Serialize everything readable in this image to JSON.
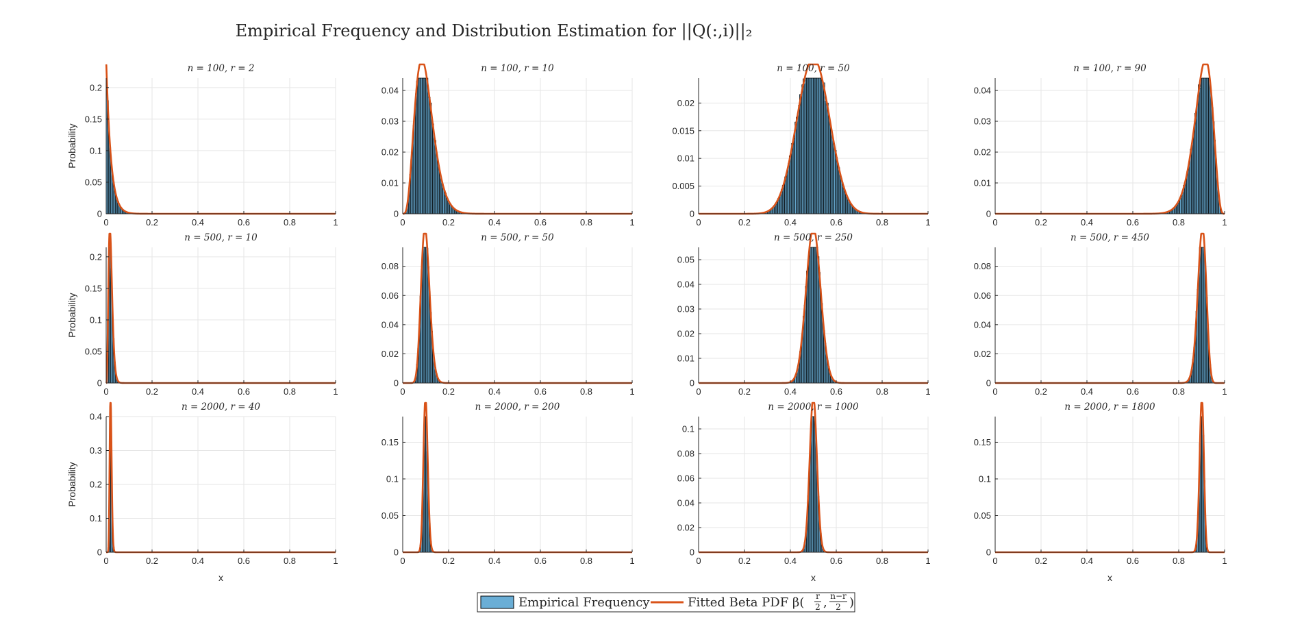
{
  "figure": {
    "title": "Empirical Frequency and Distribution Estimation for ||Q(:,i)||₂"
  },
  "legend": {
    "items": [
      "Empirical Frequency",
      "Fitted Beta PDF β(",
      ")"
    ],
    "frac1_num": "r",
    "frac1_den": "2",
    "frac2_num": "n−r",
    "frac2_den": "2",
    "comma": ","
  },
  "colors": {
    "bar_fill": "#6aaed6",
    "bar_edge": "#000000",
    "curve": "#d95319",
    "grid": "#e6e6e6",
    "axis": "#262626"
  },
  "chart_data": [
    {
      "type": "bar+line",
      "title": "n = 100, r = 2",
      "n": 100,
      "r": 2,
      "xlim": [
        0,
        1
      ],
      "ylim": [
        0,
        0.215
      ],
      "yticks": [
        0,
        0.05,
        0.1,
        0.15,
        0.2
      ],
      "ytick_labels": [
        "0",
        "0.05",
        "0.1",
        "0.15",
        "0.2"
      ],
      "xticks": [
        0,
        0.2,
        0.4,
        0.6,
        0.8,
        1
      ],
      "xtick_labels": [
        "0",
        "0.2",
        "0.4",
        "0.6",
        "0.8",
        "1"
      ],
      "ylabel": "Probability",
      "xlabel": "",
      "bin_width": 0.005,
      "series": [
        {
          "name": "Empirical Frequency",
          "kind": "bar"
        },
        {
          "name": "Fitted Beta PDF",
          "kind": "line",
          "beta_a": 1,
          "beta_b": 49
        }
      ]
    },
    {
      "type": "bar+line",
      "title": "n = 100, r = 10",
      "n": 100,
      "r": 10,
      "xlim": [
        0,
        1
      ],
      "ylim": [
        0,
        0.044
      ],
      "yticks": [
        0,
        0.01,
        0.02,
        0.03,
        0.04
      ],
      "ytick_labels": [
        "0",
        "0.01",
        "0.02",
        "0.03",
        "0.04"
      ],
      "xticks": [
        0,
        0.2,
        0.4,
        0.6,
        0.8,
        1
      ],
      "xtick_labels": [
        "0",
        "0.2",
        "0.4",
        "0.6",
        "0.8",
        "1"
      ],
      "ylabel": "",
      "xlabel": "",
      "bin_width": 0.005,
      "series": [
        {
          "name": "Empirical Frequency",
          "kind": "bar"
        },
        {
          "name": "Fitted Beta PDF",
          "kind": "line",
          "beta_a": 5,
          "beta_b": 45
        }
      ]
    },
    {
      "type": "bar+line",
      "title": "n = 100, r = 50",
      "n": 100,
      "r": 50,
      "xlim": [
        0,
        1
      ],
      "ylim": [
        0,
        0.0245
      ],
      "yticks": [
        0,
        0.005,
        0.01,
        0.015,
        0.02
      ],
      "ytick_labels": [
        "0",
        "0.005",
        "0.01",
        "0.015",
        "0.02"
      ],
      "xticks": [
        0,
        0.2,
        0.4,
        0.6,
        0.8,
        1
      ],
      "xtick_labels": [
        "0",
        "0.2",
        "0.4",
        "0.6",
        "0.8",
        "1"
      ],
      "ylabel": "",
      "xlabel": "",
      "bin_width": 0.005,
      "series": [
        {
          "name": "Empirical Frequency",
          "kind": "bar"
        },
        {
          "name": "Fitted Beta PDF",
          "kind": "line",
          "beta_a": 25,
          "beta_b": 25
        }
      ]
    },
    {
      "type": "bar+line",
      "title": "n = 100, r = 90",
      "n": 100,
      "r": 90,
      "xlim": [
        0,
        1
      ],
      "ylim": [
        0,
        0.044
      ],
      "yticks": [
        0,
        0.01,
        0.02,
        0.03,
        0.04
      ],
      "ytick_labels": [
        "0",
        "0.01",
        "0.02",
        "0.03",
        "0.04"
      ],
      "xticks": [
        0,
        0.2,
        0.4,
        0.6,
        0.8,
        1
      ],
      "xtick_labels": [
        "0",
        "0.2",
        "0.4",
        "0.6",
        "0.8",
        "1"
      ],
      "ylabel": "",
      "xlabel": "",
      "bin_width": 0.005,
      "series": [
        {
          "name": "Empirical Frequency",
          "kind": "bar"
        },
        {
          "name": "Fitted Beta PDF",
          "kind": "line",
          "beta_a": 45,
          "beta_b": 5
        }
      ]
    },
    {
      "type": "bar+line",
      "title": "n = 500, r = 10",
      "n": 500,
      "r": 10,
      "xlim": [
        0,
        1
      ],
      "ylim": [
        0,
        0.215
      ],
      "yticks": [
        0,
        0.05,
        0.1,
        0.15,
        0.2
      ],
      "ytick_labels": [
        "0",
        "0.05",
        "0.1",
        "0.15",
        "0.2"
      ],
      "xticks": [
        0,
        0.2,
        0.4,
        0.6,
        0.8,
        1
      ],
      "xtick_labels": [
        "0",
        "0.2",
        "0.4",
        "0.6",
        "0.8",
        "1"
      ],
      "ylabel": "Probability",
      "xlabel": "",
      "bin_width": 0.005,
      "series": [
        {
          "name": "Empirical Frequency",
          "kind": "bar"
        },
        {
          "name": "Fitted Beta PDF",
          "kind": "line",
          "beta_a": 5,
          "beta_b": 245
        }
      ]
    },
    {
      "type": "bar+line",
      "title": "n = 500, r = 50",
      "n": 500,
      "r": 50,
      "xlim": [
        0,
        1
      ],
      "ylim": [
        0,
        0.093
      ],
      "yticks": [
        0,
        0.02,
        0.04,
        0.06,
        0.08
      ],
      "ytick_labels": [
        "0",
        "0.02",
        "0.04",
        "0.06",
        "0.08"
      ],
      "xticks": [
        0,
        0.2,
        0.4,
        0.6,
        0.8,
        1
      ],
      "xtick_labels": [
        "0",
        "0.2",
        "0.4",
        "0.6",
        "0.8",
        "1"
      ],
      "ylabel": "",
      "xlabel": "",
      "bin_width": 0.005,
      "series": [
        {
          "name": "Empirical Frequency",
          "kind": "bar"
        },
        {
          "name": "Fitted Beta PDF",
          "kind": "line",
          "beta_a": 25,
          "beta_b": 225
        }
      ]
    },
    {
      "type": "bar+line",
      "title": "n = 500, r = 250",
      "n": 500,
      "r": 250,
      "xlim": [
        0,
        1
      ],
      "ylim": [
        0,
        0.055
      ],
      "yticks": [
        0,
        0.01,
        0.02,
        0.03,
        0.04,
        0.05
      ],
      "ytick_labels": [
        "0",
        "0.01",
        "0.02",
        "0.03",
        "0.04",
        "0.05"
      ],
      "xticks": [
        0,
        0.2,
        0.4,
        0.6,
        0.8,
        1
      ],
      "xtick_labels": [
        "0",
        "0.2",
        "0.4",
        "0.6",
        "0.8",
        "1"
      ],
      "ylabel": "",
      "xlabel": "",
      "bin_width": 0.005,
      "series": [
        {
          "name": "Empirical Frequency",
          "kind": "bar"
        },
        {
          "name": "Fitted Beta PDF",
          "kind": "line",
          "beta_a": 125,
          "beta_b": 125
        }
      ]
    },
    {
      "type": "bar+line",
      "title": "n = 500, r = 450",
      "n": 500,
      "r": 450,
      "xlim": [
        0,
        1
      ],
      "ylim": [
        0,
        0.093
      ],
      "yticks": [
        0,
        0.02,
        0.04,
        0.06,
        0.08
      ],
      "ytick_labels": [
        "0",
        "0.02",
        "0.04",
        "0.06",
        "0.08"
      ],
      "xticks": [
        0,
        0.2,
        0.4,
        0.6,
        0.8,
        1
      ],
      "xtick_labels": [
        "0",
        "0.2",
        "0.4",
        "0.6",
        "0.8",
        "1"
      ],
      "ylabel": "",
      "xlabel": "",
      "bin_width": 0.005,
      "series": [
        {
          "name": "Empirical Frequency",
          "kind": "bar"
        },
        {
          "name": "Fitted Beta PDF",
          "kind": "line",
          "beta_a": 225,
          "beta_b": 25
        }
      ]
    },
    {
      "type": "bar+line",
      "title": "n = 2000, r = 40",
      "n": 2000,
      "r": 40,
      "xlim": [
        0,
        1
      ],
      "ylim": [
        0,
        0.4
      ],
      "yticks": [
        0,
        0.1,
        0.2,
        0.3,
        0.4
      ],
      "ytick_labels": [
        "0",
        "0.1",
        "0.2",
        "0.3",
        "0.4"
      ],
      "xticks": [
        0,
        0.2,
        0.4,
        0.6,
        0.8,
        1
      ],
      "xtick_labels": [
        "0",
        "0.2",
        "0.4",
        "0.6",
        "0.8",
        "1"
      ],
      "ylabel": "Probability",
      "xlabel": "x",
      "bin_width": 0.005,
      "series": [
        {
          "name": "Empirical Frequency",
          "kind": "bar"
        },
        {
          "name": "Fitted Beta PDF",
          "kind": "line",
          "beta_a": 20,
          "beta_b": 980
        }
      ]
    },
    {
      "type": "bar+line",
      "title": "n = 2000, r = 200",
      "n": 2000,
      "r": 200,
      "xlim": [
        0,
        1
      ],
      "ylim": [
        0,
        0.185
      ],
      "yticks": [
        0,
        0.05,
        0.1,
        0.15
      ],
      "ytick_labels": [
        "0",
        "0.05",
        "0.1",
        "0.15"
      ],
      "xticks": [
        0,
        0.2,
        0.4,
        0.6,
        0.8,
        1
      ],
      "xtick_labels": [
        "0",
        "0.2",
        "0.4",
        "0.6",
        "0.8",
        "1"
      ],
      "ylabel": "",
      "xlabel": "",
      "bin_width": 0.005,
      "series": [
        {
          "name": "Empirical Frequency",
          "kind": "bar"
        },
        {
          "name": "Fitted Beta PDF",
          "kind": "line",
          "beta_a": 100,
          "beta_b": 900
        }
      ]
    },
    {
      "type": "bar+line",
      "title": "n = 2000, r = 1000",
      "n": 2000,
      "r": 1000,
      "xlim": [
        0,
        1
      ],
      "ylim": [
        0,
        0.11
      ],
      "yticks": [
        0,
        0.02,
        0.04,
        0.06,
        0.08,
        0.1
      ],
      "ytick_labels": [
        "0",
        "0.02",
        "0.04",
        "0.06",
        "0.08",
        "0.1"
      ],
      "xticks": [
        0,
        0.2,
        0.4,
        0.6,
        0.8,
        1
      ],
      "xtick_labels": [
        "0",
        "0.2",
        "0.4",
        "0.6",
        "0.8",
        "1"
      ],
      "ylabel": "",
      "xlabel": "x",
      "bin_width": 0.005,
      "series": [
        {
          "name": "Empirical Frequency",
          "kind": "bar"
        },
        {
          "name": "Fitted Beta PDF",
          "kind": "line",
          "beta_a": 500,
          "beta_b": 500
        }
      ]
    },
    {
      "type": "bar+line",
      "title": "n = 2000, r = 1800",
      "n": 2000,
      "r": 1800,
      "xlim": [
        0,
        1
      ],
      "ylim": [
        0,
        0.185
      ],
      "yticks": [
        0,
        0.05,
        0.1,
        0.15
      ],
      "ytick_labels": [
        "0",
        "0.05",
        "0.1",
        "0.15"
      ],
      "xticks": [
        0,
        0.2,
        0.4,
        0.6,
        0.8,
        1
      ],
      "xtick_labels": [
        "0",
        "0.2",
        "0.4",
        "0.6",
        "0.8",
        "1"
      ],
      "ylabel": "",
      "xlabel": "x",
      "bin_width": 0.005,
      "series": [
        {
          "name": "Empirical Frequency",
          "kind": "bar"
        },
        {
          "name": "Fitted Beta PDF",
          "kind": "line",
          "beta_a": 900,
          "beta_b": 100
        }
      ]
    }
  ]
}
